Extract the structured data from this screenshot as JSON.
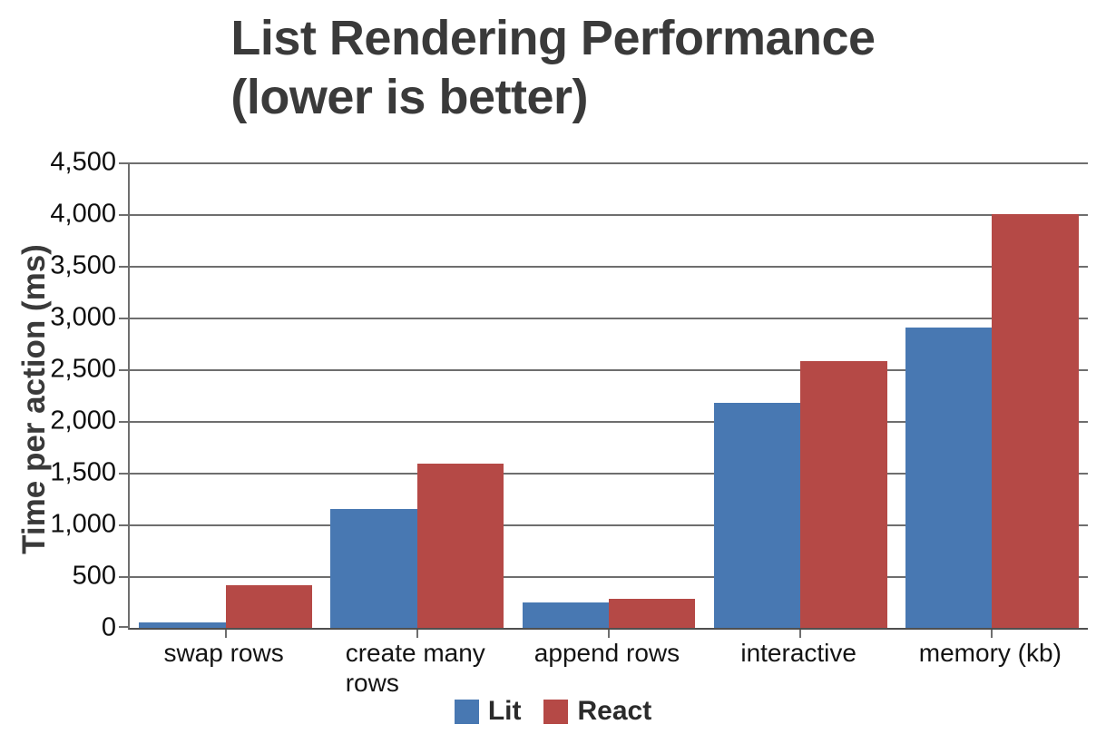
{
  "page": {
    "background": "#ffffff"
  },
  "title": {
    "line1": "List Rendering Performance",
    "line2": "(lower is better)"
  },
  "chart_data": {
    "type": "bar",
    "title": "List Rendering Performance (lower is better)",
    "xlabel": "",
    "ylabel": "Time per action (ms)",
    "categories": [
      "swap rows",
      "create many\nrows",
      "append rows",
      "interactive",
      "memory (kb)"
    ],
    "series": [
      {
        "name": "Lit",
        "color": "#4878b2",
        "values": [
          50,
          1150,
          245,
          2175,
          2900
        ]
      },
      {
        "name": "React",
        "color": "#b54946",
        "values": [
          415,
          1590,
          280,
          2575,
          4000
        ]
      }
    ],
    "ylim": [
      0,
      4500
    ],
    "ytick_step": 500,
    "ytick_labels": [
      "0",
      "500",
      "1,000",
      "1,500",
      "2,000",
      "2,500",
      "3,000",
      "3,500",
      "4,000",
      "4,500"
    ],
    "grid": true,
    "legend_position": "bottom",
    "value_labels_shown": false
  },
  "legend": {
    "items": [
      {
        "label": "Lit",
        "color": "#4878b2"
      },
      {
        "label": "React",
        "color": "#b54946"
      }
    ]
  },
  "axes": {
    "grid_color": "#6e6e6e",
    "axis_color": "#4f4f4f",
    "tick_label_color": "#0f0f0f"
  }
}
